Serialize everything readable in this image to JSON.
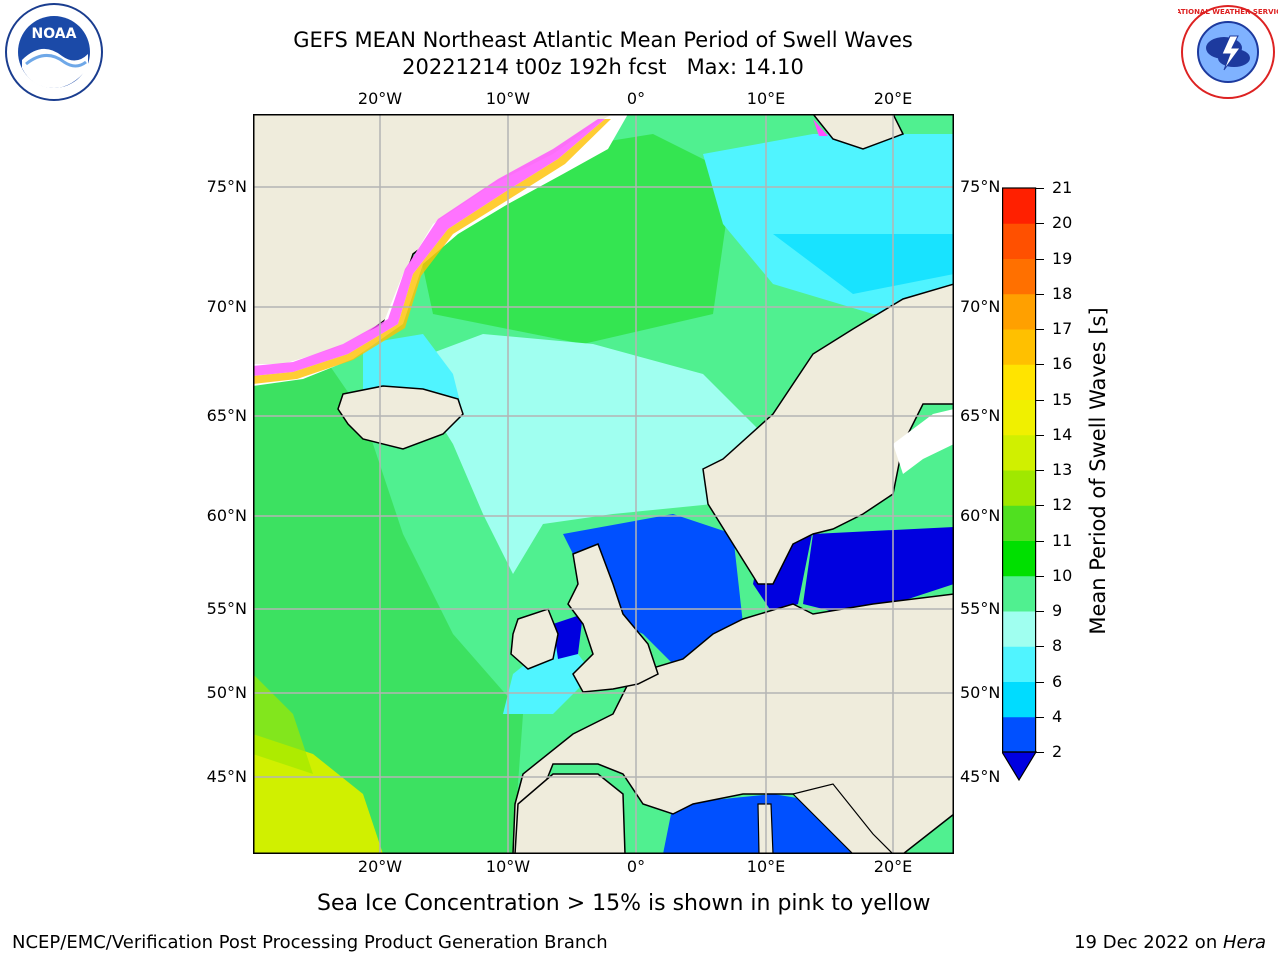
{
  "title": {
    "line1": "GEFS MEAN Northeast Atlantic Mean Period of Swell Waves",
    "line2": "20221214 t00z 192h fcst   Max: 14.10"
  },
  "logos": {
    "left": {
      "icon": "noaa-logo",
      "text": "NOAA"
    },
    "right": {
      "icon": "nws-logo",
      "text": "NATIONAL WEATHER SERVICE"
    }
  },
  "map": {
    "lon_ticks": [
      "20°W",
      "10°W",
      "0°",
      "10°E",
      "20°E"
    ],
    "lat_ticks": [
      "75°N",
      "70°N",
      "65°N",
      "60°N",
      "55°N",
      "50°N",
      "45°N"
    ],
    "colors": {
      "land": "#efecdc",
      "ice": "#ffffff",
      "grid": "#b4b4b4"
    }
  },
  "colorbar": {
    "label": "Mean Period of Swell Waves [s]",
    "levels": [
      "2",
      "4",
      "6",
      "8",
      "9",
      "10",
      "11",
      "12",
      "13",
      "14",
      "15",
      "16",
      "17",
      "18",
      "19",
      "20",
      "21"
    ],
    "colors": [
      "#0050ff",
      "#00dcff",
      "#50f4ff",
      "#a0fff0",
      "#50f090",
      "#00e000",
      "#50e020",
      "#a0e800",
      "#d0f000",
      "#f0f000",
      "#ffe400",
      "#ffc000",
      "#ffa000",
      "#ff7000",
      "#ff5000",
      "#ff2000"
    ],
    "extend_color": "#0000e0"
  },
  "annotation": "Sea Ice Concentration > 15% is shown in pink to yellow",
  "footer": {
    "left": "NCEP/EMC/Verification Post Processing Product Generation Branch",
    "right_date": "19 Dec 2022 on ",
    "right_host": "Hera"
  }
}
